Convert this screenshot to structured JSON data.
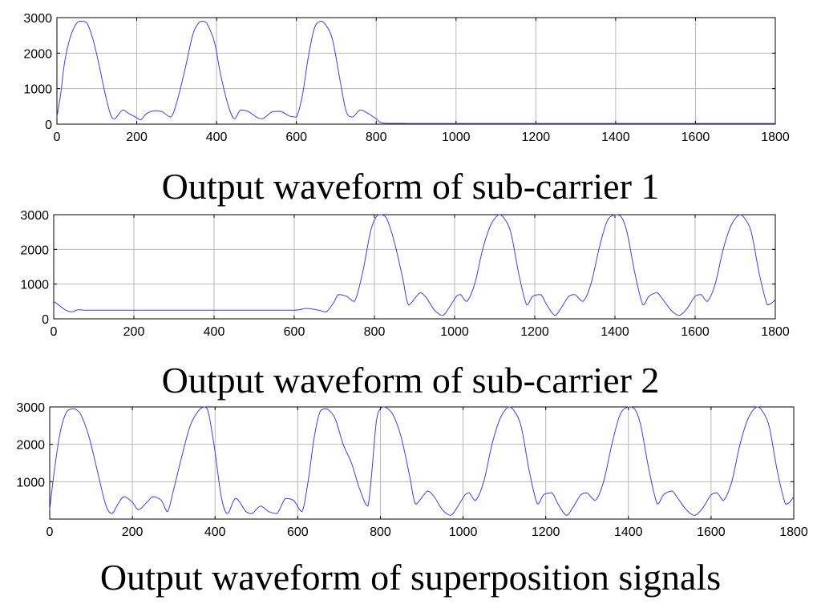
{
  "chart_data": [
    {
      "type": "line",
      "title": "Output waveform of sub-carrier 1",
      "xlabel": "",
      "ylabel": "",
      "xlim": [
        0,
        1800
      ],
      "ylim": [
        0,
        3000
      ],
      "xticks": [
        "0",
        "200",
        "400",
        "600",
        "800",
        "1000",
        "1200",
        "1400",
        "1600",
        "1800"
      ],
      "yticks": [
        "0",
        "1000",
        "2000",
        "3000"
      ],
      "grid": true,
      "line_color": "#3f3fe0",
      "series": [
        {
          "x": [
            0,
            10,
            20,
            35,
            50,
            60,
            75,
            90,
            105,
            120,
            135,
            145,
            165,
            180,
            200,
            210,
            225,
            245,
            265,
            285,
            300,
            320,
            340,
            355,
            365,
            375,
            395,
            410,
            430,
            445,
            460,
            480,
            500,
            515,
            540,
            560,
            585,
            600,
            615,
            630,
            645,
            660,
            670,
            690,
            710,
            725,
            740,
            760,
            780,
            800,
            820,
            900,
            1200,
            1500,
            1800
          ],
          "y": [
            200,
            900,
            1800,
            2500,
            2850,
            2900,
            2850,
            2400,
            1700,
            900,
            250,
            150,
            400,
            300,
            180,
            120,
            300,
            380,
            340,
            200,
            600,
            1500,
            2500,
            2850,
            2900,
            2850,
            2300,
            1400,
            500,
            150,
            400,
            350,
            200,
            150,
            350,
            360,
            220,
            200,
            800,
            1900,
            2700,
            2900,
            2850,
            2400,
            1200,
            350,
            200,
            400,
            300,
            150,
            30,
            20,
            20,
            20,
            20
          ]
        }
      ]
    },
    {
      "type": "line",
      "title": "Output waveform of sub-carrier 2",
      "xlabel": "",
      "ylabel": "",
      "xlim": [
        0,
        1800
      ],
      "ylim": [
        0,
        3000
      ],
      "xticks": [
        "0",
        "200",
        "400",
        "600",
        "800",
        "1000",
        "1200",
        "1400",
        "1600",
        "1800"
      ],
      "yticks": [
        "0",
        "1000",
        "2000",
        "3000"
      ],
      "grid": true,
      "line_color": "#3f3fe0",
      "series": [
        {
          "x": [
            0,
            10,
            20,
            30,
            45,
            60,
            75,
            100,
            200,
            300,
            400,
            500,
            600,
            630,
            660,
            680,
            700,
            710,
            730,
            750,
            770,
            790,
            805,
            815,
            830,
            850,
            870,
            885,
            905,
            915,
            930,
            950,
            970,
            985,
            1005,
            1015,
            1030,
            1050,
            1070,
            1090,
            1110,
            1120,
            1140,
            1160,
            1180,
            1195,
            1215,
            1230,
            1250,
            1265,
            1285,
            1300,
            1320,
            1340,
            1360,
            1380,
            1400,
            1415,
            1430,
            1450,
            1470,
            1485,
            1505,
            1520,
            1540,
            1560,
            1580,
            1600,
            1615,
            1630,
            1650,
            1670,
            1690,
            1710,
            1720,
            1740,
            1760,
            1780,
            1790,
            1800
          ],
          "y": [
            500,
            420,
            330,
            250,
            200,
            260,
            250,
            250,
            250,
            250,
            250,
            250,
            250,
            300,
            250,
            200,
            500,
            700,
            650,
            500,
            1300,
            2500,
            2950,
            3000,
            2900,
            2200,
            1200,
            400,
            650,
            750,
            600,
            250,
            100,
            300,
            650,
            700,
            500,
            1000,
            2000,
            2700,
            3000,
            2950,
            2500,
            1300,
            400,
            650,
            700,
            400,
            100,
            300,
            650,
            700,
            500,
            1000,
            2000,
            2800,
            3000,
            2950,
            2500,
            1300,
            400,
            650,
            750,
            550,
            250,
            100,
            300,
            650,
            700,
            500,
            1000,
            2000,
            2700,
            3000,
            2950,
            2500,
            1300,
            400,
            450,
            550
          ]
        }
      ]
    },
    {
      "type": "line",
      "title": "Output waveform of superposition signals",
      "xlabel": "",
      "ylabel": "",
      "xlim": [
        0,
        1800
      ],
      "ylim": [
        0,
        3000
      ],
      "xticks": [
        "0",
        "200",
        "400",
        "600",
        "800",
        "1000",
        "1200",
        "1400",
        "1600",
        "1800"
      ],
      "yticks": [
        "1000",
        "2000",
        "3000"
      ],
      "grid": true,
      "line_color": "#3f3fe0",
      "series": [
        {
          "x": [
            0,
            10,
            25,
            40,
            55,
            60,
            75,
            95,
            115,
            135,
            150,
            165,
            180,
            200,
            215,
            235,
            250,
            270,
            285,
            300,
            320,
            340,
            360,
            375,
            385,
            400,
            415,
            430,
            450,
            475,
            490,
            510,
            530,
            550,
            570,
            590,
            610,
            625,
            640,
            655,
            670,
            690,
            710,
            730,
            750,
            770,
            790,
            800,
            810,
            830,
            850,
            870,
            885,
            905,
            915,
            930,
            950,
            970,
            985,
            1005,
            1015,
            1030,
            1050,
            1070,
            1090,
            1110,
            1120,
            1140,
            1160,
            1180,
            1195,
            1215,
            1230,
            1250,
            1265,
            1285,
            1300,
            1320,
            1340,
            1360,
            1380,
            1400,
            1415,
            1430,
            1450,
            1470,
            1485,
            1505,
            1520,
            1540,
            1560,
            1580,
            1600,
            1615,
            1630,
            1650,
            1670,
            1690,
            1710,
            1720,
            1740,
            1760,
            1780,
            1790,
            1800
          ],
          "y": [
            250,
            1200,
            2300,
            2850,
            2950,
            2950,
            2800,
            2200,
            1300,
            400,
            150,
            400,
            600,
            450,
            250,
            450,
            600,
            500,
            200,
            800,
            1700,
            2500,
            2900,
            3000,
            2800,
            1800,
            600,
            150,
            550,
            200,
            150,
            350,
            200,
            150,
            550,
            500,
            200,
            1000,
            2200,
            2900,
            2950,
            2700,
            2000,
            1500,
            800,
            350,
            2600,
            2950,
            3000,
            2800,
            2200,
            1200,
            400,
            650,
            750,
            600,
            250,
            100,
            300,
            650,
            700,
            500,
            1000,
            2000,
            2700,
            3000,
            2950,
            2500,
            1300,
            400,
            650,
            700,
            400,
            100,
            300,
            650,
            700,
            500,
            1000,
            2000,
            2800,
            3000,
            2950,
            2500,
            1300,
            400,
            650,
            750,
            550,
            250,
            100,
            300,
            650,
            700,
            500,
            1000,
            2000,
            2700,
            3000,
            2950,
            2500,
            1300,
            400,
            450,
            600
          ]
        }
      ]
    }
  ]
}
